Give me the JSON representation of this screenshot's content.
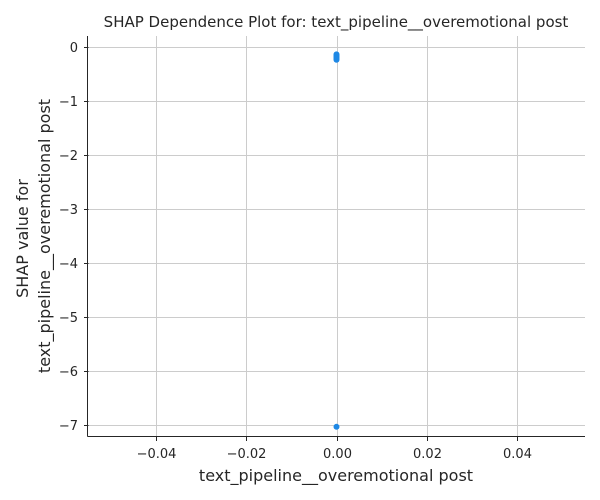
{
  "chart_data": {
    "type": "scatter",
    "title": "SHAP Dependence Plot for: text_pipeline__overemotional post",
    "xlabel": "text_pipeline__overemotional post",
    "ylabel_lines": [
      "SHAP value for",
      "text_pipeline__overemotional post"
    ],
    "xlim": [
      -0.055,
      0.055
    ],
    "ylim": [
      -7.2,
      0.2
    ],
    "xticks": [
      -0.04,
      -0.02,
      0.0,
      0.02,
      0.04
    ],
    "xtick_labels": [
      "−0.04",
      "−0.02",
      "0.00",
      "0.02",
      "0.04"
    ],
    "yticks": [
      0,
      -1,
      -2,
      -3,
      -4,
      -5,
      -6,
      -7
    ],
    "ytick_labels": [
      "0",
      "−1",
      "−2",
      "−3",
      "−4",
      "−5",
      "−6",
      "−7"
    ],
    "grid": true,
    "point_color": "#1e88e5",
    "points": [
      {
        "x": 0.0,
        "y": -0.14
      },
      {
        "x": 0.0,
        "y": -0.16
      },
      {
        "x": 0.0,
        "y": -0.18
      },
      {
        "x": 0.0,
        "y": -0.2
      },
      {
        "x": 0.0,
        "y": -0.22
      },
      {
        "x": 0.0,
        "y": -0.24
      },
      {
        "x": 0.0,
        "y": -7.03
      }
    ]
  }
}
